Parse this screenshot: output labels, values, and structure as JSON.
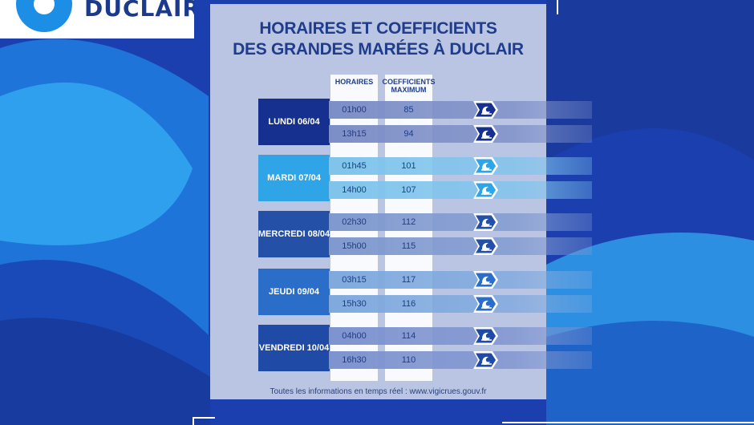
{
  "brand": {
    "name": "DUCLAIR"
  },
  "title": {
    "line1": "HORAIRES ET COEFFICIENTS",
    "line2": "DES GRANDES MARÉES À DUCLAIR"
  },
  "columns": {
    "horaires": "HORAIRES",
    "coef_line1": "COEFFICIENTS",
    "coef_line2": "MAXIMUM"
  },
  "days": [
    {
      "label": "LUNDI 06/04",
      "color": "#16308f",
      "band": "#7c8ec7",
      "tides": [
        {
          "time": "01h00",
          "coef": "85"
        },
        {
          "time": "13h15",
          "coef": "94"
        }
      ]
    },
    {
      "label": "MARDI 07/04",
      "color": "#2fa4e6",
      "band": "#7fc4ec",
      "tides": [
        {
          "time": "01h45",
          "coef": "101"
        },
        {
          "time": "14h00",
          "coef": "107"
        }
      ]
    },
    {
      "label": "MERCREDI 08/04",
      "color": "#2550a8",
      "band": "#7f99cf",
      "tides": [
        {
          "time": "02h30",
          "coef": "112"
        },
        {
          "time": "15h00",
          "coef": "115"
        }
      ]
    },
    {
      "label": "JEUDI 09/04",
      "color": "#2b6ec9",
      "band": "#7fa9de",
      "tides": [
        {
          "time": "03h15",
          "coef": "117"
        },
        {
          "time": "15h30",
          "coef": "116"
        }
      ]
    },
    {
      "label": "VENDREDI 10/04",
      "color": "#1f4aa6",
      "band": "#7d93cf",
      "tides": [
        {
          "time": "04h00",
          "coef": "114"
        },
        {
          "time": "16h30",
          "coef": "110"
        }
      ]
    }
  ],
  "footer": "Toutes les informations en temps réel : www.vigicrues.gouv.fr",
  "icons": {
    "tide": "wave-icon"
  }
}
